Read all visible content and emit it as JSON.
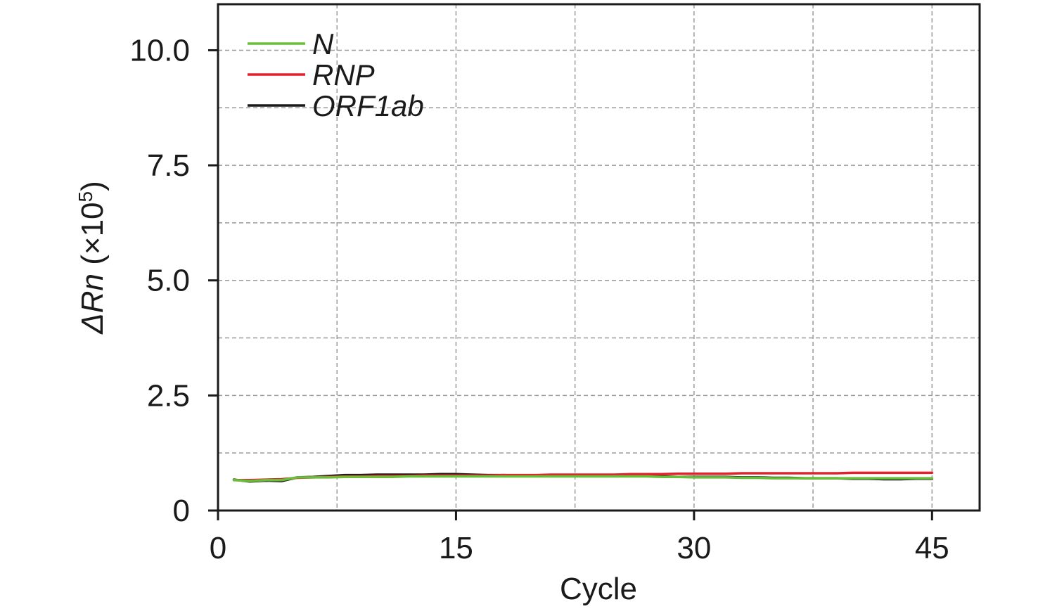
{
  "chart_data": {
    "type": "line",
    "title": "",
    "xlabel": "Cycle",
    "ylabel_main": "ΔRn",
    "ylabel_unit_prefix": " (×10",
    "ylabel_unit_exp": "5",
    "ylabel_unit_suffix": ")",
    "xlim": [
      0,
      48
    ],
    "ylim": [
      0,
      11
    ],
    "x_ticks": [
      0,
      15,
      30,
      45
    ],
    "x_tick_labels": [
      "0",
      "15",
      "30",
      "45"
    ],
    "y_ticks": [
      0,
      2.5,
      5.0,
      7.5,
      10.0
    ],
    "y_tick_labels": [
      "0",
      "2.5",
      "5.0",
      "7.5",
      "10.0"
    ],
    "x_grid": [
      7.5,
      15,
      22.5,
      30,
      37.5,
      45
    ],
    "y_grid": [
      1.25,
      2.5,
      3.75,
      5.0,
      6.25,
      7.5,
      8.75,
      10.0
    ],
    "grid": true,
    "legend_position": "top-left",
    "x": [
      1,
      2,
      3,
      4,
      5,
      6,
      7,
      8,
      9,
      10,
      11,
      12,
      13,
      14,
      15,
      16,
      17,
      18,
      19,
      20,
      21,
      22,
      23,
      24,
      25,
      26,
      27,
      28,
      29,
      30,
      31,
      32,
      33,
      34,
      35,
      36,
      37,
      38,
      39,
      40,
      41,
      42,
      43,
      44,
      45
    ],
    "series": [
      {
        "name": "N",
        "color": "#6abf3a",
        "values": [
          0.66,
          0.64,
          0.66,
          0.66,
          0.72,
          0.72,
          0.72,
          0.73,
          0.73,
          0.73,
          0.73,
          0.74,
          0.74,
          0.74,
          0.74,
          0.74,
          0.74,
          0.74,
          0.74,
          0.74,
          0.74,
          0.74,
          0.74,
          0.74,
          0.74,
          0.74,
          0.74,
          0.73,
          0.73,
          0.72,
          0.72,
          0.72,
          0.71,
          0.71,
          0.7,
          0.7,
          0.7,
          0.7,
          0.7,
          0.7,
          0.7,
          0.7,
          0.7,
          0.7,
          0.7
        ]
      },
      {
        "name": "RNP",
        "color": "#e0232a",
        "values": [
          0.66,
          0.66,
          0.67,
          0.68,
          0.71,
          0.72,
          0.73,
          0.74,
          0.74,
          0.75,
          0.75,
          0.75,
          0.76,
          0.76,
          0.76,
          0.76,
          0.76,
          0.77,
          0.77,
          0.77,
          0.78,
          0.78,
          0.78,
          0.78,
          0.78,
          0.79,
          0.79,
          0.79,
          0.8,
          0.8,
          0.8,
          0.8,
          0.81,
          0.81,
          0.81,
          0.81,
          0.81,
          0.81,
          0.81,
          0.82,
          0.82,
          0.82,
          0.82,
          0.82,
          0.82
        ]
      },
      {
        "name": "ORF1ab",
        "color": "#1a1a1a",
        "values": [
          0.67,
          0.63,
          0.65,
          0.64,
          0.72,
          0.73,
          0.75,
          0.77,
          0.77,
          0.78,
          0.78,
          0.78,
          0.78,
          0.79,
          0.79,
          0.78,
          0.77,
          0.77,
          0.76,
          0.76,
          0.76,
          0.76,
          0.76,
          0.76,
          0.76,
          0.75,
          0.75,
          0.74,
          0.73,
          0.73,
          0.73,
          0.73,
          0.72,
          0.72,
          0.71,
          0.71,
          0.7,
          0.7,
          0.7,
          0.69,
          0.69,
          0.68,
          0.68,
          0.69,
          0.69
        ]
      }
    ]
  }
}
